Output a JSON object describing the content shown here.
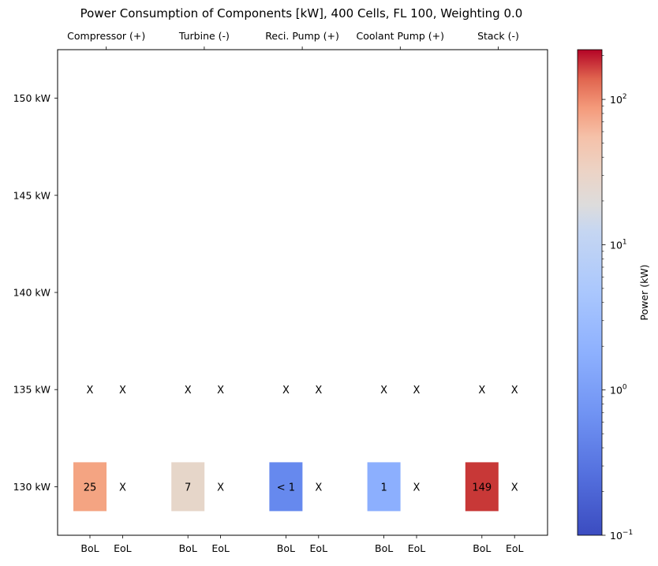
{
  "chart_data": {
    "type": "heatmap",
    "title": "Power Consumption of Components [kW], 400 Cells, FL 100, Weighting 0.0",
    "groups": [
      "Compressor (+)",
      "Turbine (-)",
      "Reci. Pump (+)",
      "Coolant Pump (+)",
      "Stack (-)"
    ],
    "columns": [
      "BoL",
      "EoL",
      "BoL",
      "EoL",
      "BoL",
      "EoL",
      "BoL",
      "EoL",
      "BoL",
      "EoL"
    ],
    "y_ticks": [
      "150 kW",
      "145 kW",
      "140 kW",
      "135 kW",
      "130 kW"
    ],
    "y_values": [
      150,
      145,
      140,
      135,
      130
    ],
    "ylim": [
      127.5,
      152.5
    ],
    "cells": [
      {
        "group": 0,
        "col": 0,
        "y": 135,
        "value": null,
        "label": "X"
      },
      {
        "group": 0,
        "col": 1,
        "y": 135,
        "value": null,
        "label": "X"
      },
      {
        "group": 1,
        "col": 2,
        "y": 135,
        "value": null,
        "label": "X"
      },
      {
        "group": 1,
        "col": 3,
        "y": 135,
        "value": null,
        "label": "X"
      },
      {
        "group": 2,
        "col": 4,
        "y": 135,
        "value": null,
        "label": "X"
      },
      {
        "group": 2,
        "col": 5,
        "y": 135,
        "value": null,
        "label": "X"
      },
      {
        "group": 3,
        "col": 6,
        "y": 135,
        "value": null,
        "label": "X"
      },
      {
        "group": 3,
        "col": 7,
        "y": 135,
        "value": null,
        "label": "X"
      },
      {
        "group": 4,
        "col": 8,
        "y": 135,
        "value": null,
        "label": "X"
      },
      {
        "group": 4,
        "col": 9,
        "y": 135,
        "value": null,
        "label": "X"
      },
      {
        "group": 0,
        "col": 0,
        "y": 130,
        "value": 25,
        "label": "25"
      },
      {
        "group": 0,
        "col": 1,
        "y": 130,
        "value": null,
        "label": "X"
      },
      {
        "group": 1,
        "col": 2,
        "y": 130,
        "value": 7,
        "label": "7"
      },
      {
        "group": 1,
        "col": 3,
        "y": 130,
        "value": null,
        "label": "X"
      },
      {
        "group": 2,
        "col": 4,
        "y": 130,
        "value": 0.3,
        "label": "< 1"
      },
      {
        "group": 2,
        "col": 5,
        "y": 130,
        "value": null,
        "label": "X"
      },
      {
        "group": 3,
        "col": 6,
        "y": 130,
        "value": 1,
        "label": "1"
      },
      {
        "group": 3,
        "col": 7,
        "y": 130,
        "value": null,
        "label": "X"
      },
      {
        "group": 4,
        "col": 8,
        "y": 130,
        "value": 149,
        "label": "149"
      },
      {
        "group": 4,
        "col": 9,
        "y": 130,
        "value": null,
        "label": "X"
      }
    ],
    "colorbar": {
      "label": "Power (kW)",
      "scale": "log",
      "colormap": "coolwarm",
      "range": [
        0.1,
        220
      ],
      "ticks": [
        {
          "value": 0.1,
          "base": "10",
          "exp": "−1"
        },
        {
          "value": 1,
          "base": "10",
          "exp": "0"
        },
        {
          "value": 10,
          "base": "10",
          "exp": "1"
        },
        {
          "value": 100,
          "base": "10",
          "exp": "2"
        }
      ]
    },
    "colors": {
      "c25": "#f4a482",
      "c7": "#e6d6c9",
      "c03": "#6689ee",
      "c1": "#8caffe",
      "c149": "#c83837"
    }
  }
}
